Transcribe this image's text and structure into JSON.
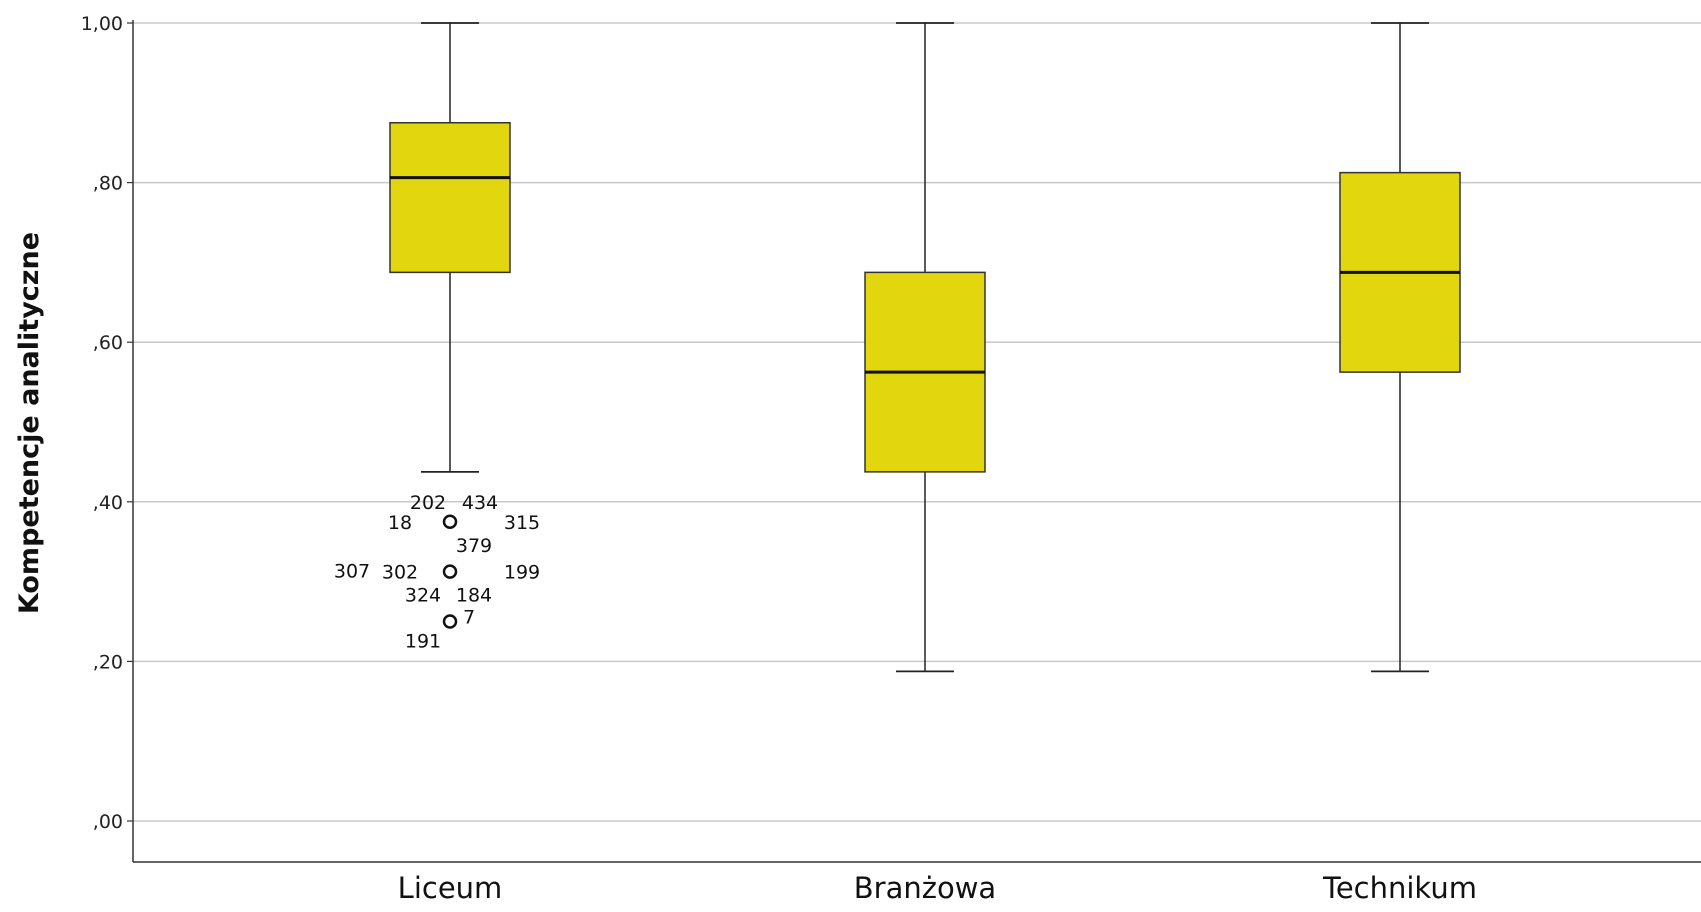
{
  "chart_data": {
    "type": "boxplot",
    "title": "",
    "xlabel": "",
    "ylabel": "Kompetencje analityczne",
    "ylim": [
      -0.05,
      1.0
    ],
    "yticks": [
      {
        "value": 0.0,
        "label": ",00"
      },
      {
        "value": 0.2,
        "label": ",20"
      },
      {
        "value": 0.4,
        "label": ",40"
      },
      {
        "value": 0.6,
        "label": ",60"
      },
      {
        "value": 0.8,
        "label": ",80"
      },
      {
        "value": 1.0,
        "label": "1,00"
      }
    ],
    "grid": true,
    "box_color": "#e2d60e",
    "categories": [
      "Liceum",
      "Branżowa",
      "Technikum"
    ],
    "boxes": [
      {
        "category": "Liceum",
        "whisker_low": 0.4375,
        "q1": 0.6875,
        "median": 0.8063,
        "q3": 0.875,
        "whisker_high": 1.0,
        "outliers": [
          {
            "value": 0.375,
            "labels": [
              {
                "text": "202",
                "pos": "top-left"
              },
              {
                "text": "434",
                "pos": "top-right"
              },
              {
                "text": "18",
                "pos": "left"
              },
              {
                "text": "315",
                "pos": "right"
              },
              {
                "text": "379",
                "pos": "bottom-right"
              }
            ]
          },
          {
            "value": 0.3125,
            "labels": [
              {
                "text": "307",
                "pos": "far-left"
              },
              {
                "text": "302",
                "pos": "left"
              },
              {
                "text": "199",
                "pos": "right"
              },
              {
                "text": "324",
                "pos": "bottom-left"
              },
              {
                "text": "184",
                "pos": "bottom-right"
              }
            ]
          },
          {
            "value": 0.25,
            "labels": [
              {
                "text": "7",
                "pos": "top-right"
              },
              {
                "text": "191",
                "pos": "bottom-left"
              }
            ]
          }
        ]
      },
      {
        "category": "Branżowa",
        "whisker_low": 0.1875,
        "q1": 0.4375,
        "median": 0.5625,
        "q3": 0.6875,
        "whisker_high": 1.0,
        "outliers": []
      },
      {
        "category": "Technikum",
        "whisker_low": 0.1875,
        "q1": 0.5625,
        "median": 0.6875,
        "q3": 0.8125,
        "whisker_high": 1.0,
        "outliers": []
      }
    ]
  }
}
